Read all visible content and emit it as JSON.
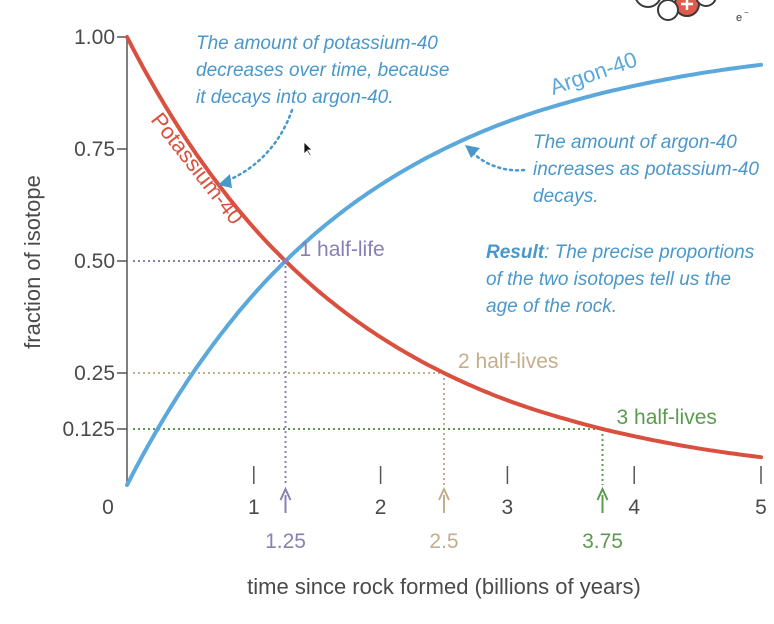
{
  "chart_data": {
    "type": "line",
    "xlabel": "time since rock formed (billions of years)",
    "ylabel": "fraction of isotope",
    "xlim": [
      0,
      5
    ],
    "ylim": [
      0,
      1
    ],
    "x_ticks": [
      "0",
      "1",
      "2",
      "3",
      "4",
      "5"
    ],
    "y_ticks": [
      "1.00",
      "0.75",
      "0.50",
      "0.25",
      "0.125"
    ],
    "series": [
      {
        "name": "Potassium-40",
        "color": "#d9513e",
        "x": [
          0,
          0.25,
          0.5,
          0.75,
          1,
          1.25,
          1.5,
          2,
          2.5,
          3,
          3.5,
          3.75,
          4,
          4.5,
          5
        ],
        "y": [
          1,
          0.871,
          0.758,
          0.66,
          0.574,
          0.5,
          0.435,
          0.33,
          0.25,
          0.189,
          0.144,
          0.125,
          0.109,
          0.082,
          0.062
        ]
      },
      {
        "name": "Argon-40",
        "color": "#5aa8dc",
        "x": [
          0,
          0.25,
          0.5,
          0.75,
          1,
          1.25,
          1.5,
          2,
          2.5,
          3,
          3.5,
          3.75,
          4,
          4.5,
          5
        ],
        "y": [
          0,
          0.129,
          0.242,
          0.34,
          0.426,
          0.5,
          0.565,
          0.67,
          0.75,
          0.811,
          0.856,
          0.875,
          0.891,
          0.918,
          0.938
        ]
      }
    ],
    "half_lives": [
      {
        "x": 1.25,
        "y": 0.5,
        "x_label": "1.25",
        "label": "1 half-life",
        "color": "#8a7fb5"
      },
      {
        "x": 2.5,
        "y": 0.25,
        "x_label": "2.5",
        "label": "2 half-lives",
        "color": "#c4ad8c"
      },
      {
        "x": 3.75,
        "y": 0.125,
        "x_label": "3.75",
        "label": "3 half-lives",
        "color": "#5b9a4f"
      }
    ],
    "annotations": {
      "potassium": [
        "The amount of potassium-40",
        "decreases over time, because",
        "it decays into argon-40."
      ],
      "argon": [
        "The amount of argon-40",
        "increases as potassium-40",
        "decays."
      ],
      "result_bold": "Result",
      "result": [
        ": The precise proportions",
        "of the two isotopes tell us the",
        "age of the rock."
      ]
    }
  }
}
